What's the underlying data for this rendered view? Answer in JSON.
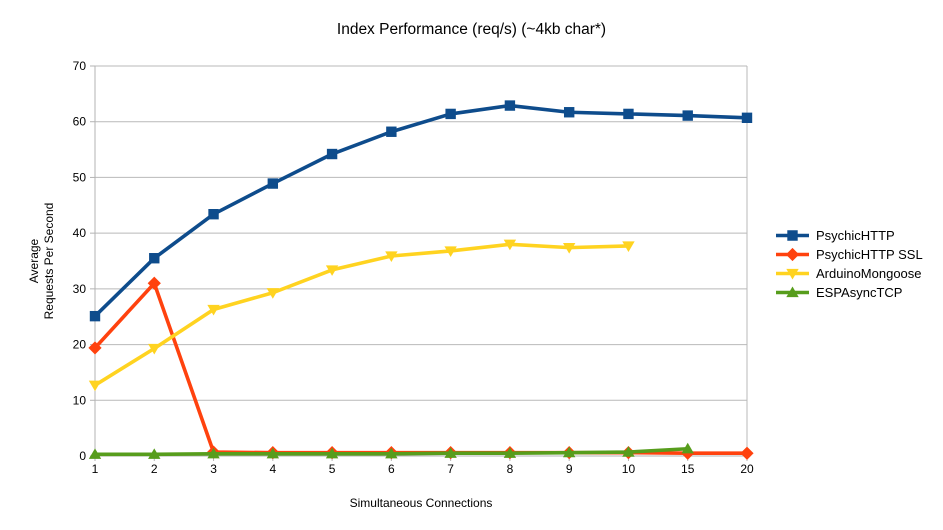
{
  "chart_data": {
    "type": "line",
    "title": "Index Performance (req/s) (~4kb char*)",
    "xlabel": "Simultaneous Connections",
    "ylabel_lines": [
      "Average",
      "Requests Per Second"
    ],
    "categories": [
      "1",
      "2",
      "3",
      "4",
      "5",
      "6",
      "7",
      "8",
      "9",
      "10",
      "15",
      "20"
    ],
    "ylim": [
      0,
      70
    ],
    "yticks": [
      0,
      10,
      20,
      30,
      40,
      50,
      60,
      70
    ],
    "grid": "horizontal",
    "legend_position": "right",
    "series": [
      {
        "name": "PsychicHTTP",
        "color": "#0e4c8c",
        "marker": "square",
        "values": [
          25.1,
          35.5,
          43.4,
          48.9,
          54.2,
          58.2,
          61.4,
          62.9,
          61.7,
          61.4,
          61.1,
          60.7
        ]
      },
      {
        "name": "PsychicHTTP SSL",
        "color": "#ff420e",
        "marker": "diamond",
        "values": [
          19.4,
          31.0,
          0.7,
          0.6,
          0.6,
          0.6,
          0.6,
          0.6,
          0.6,
          0.6,
          0.5,
          0.5
        ]
      },
      {
        "name": "ArduinoMongoose",
        "color": "#ffd320",
        "marker": "triangle-down",
        "values": [
          12.7,
          19.3,
          26.3,
          29.3,
          33.4,
          35.9,
          36.8,
          38.0,
          37.4,
          37.7,
          null,
          null
        ]
      },
      {
        "name": "ESPAsyncTCP",
        "color": "#579d1c",
        "marker": "triangle-up",
        "values": [
          0.3,
          0.3,
          0.4,
          0.4,
          0.4,
          0.4,
          0.5,
          0.5,
          0.6,
          0.7,
          1.3,
          null
        ]
      }
    ],
    "colors": {
      "grid": "#b9b9b9",
      "axis": "#b3b3b3",
      "text": "#000000",
      "background": "#ffffff"
    }
  }
}
